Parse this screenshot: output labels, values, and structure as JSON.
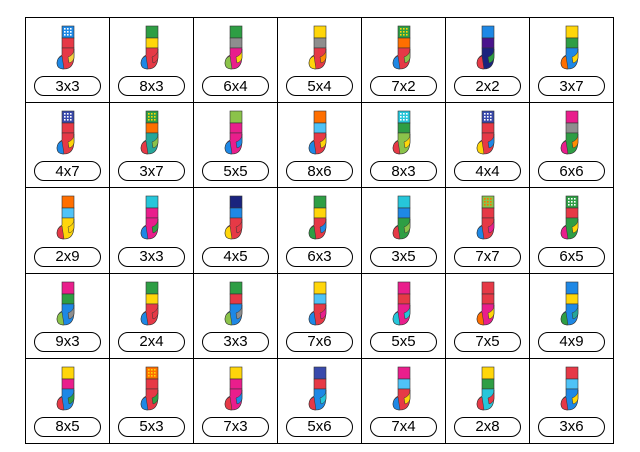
{
  "rows": [
    [
      {
        "label": "3x3",
        "colors": {
          "cuff": "#1e88e5",
          "dot": "#ffffff",
          "upper": "#e63946",
          "heel": "#f4d03f",
          "body": "#e63946",
          "toe": "#1e88e5"
        }
      },
      {
        "label": "8x3",
        "colors": {
          "cuff": "#2e9e44",
          "dot": null,
          "upper": "#ffd60a",
          "heel": "#e63946",
          "body": "#e63946",
          "toe": "#1e88e5"
        }
      },
      {
        "label": "6x4",
        "colors": {
          "cuff": "#2e9e44",
          "dot": null,
          "upper": "#8e8e8e",
          "heel": "#ffd60a",
          "body": "#e91e8c",
          "toe": "#8bc34a"
        }
      },
      {
        "label": "5x4",
        "colors": {
          "cuff": "#ffd60a",
          "dot": null,
          "upper": "#8e8e8e",
          "heel": "#ff8c00",
          "body": "#e63946",
          "toe": "#ffd60a"
        }
      },
      {
        "label": "7x2",
        "colors": {
          "cuff": "#2e9e44",
          "dot": "#ffd60a",
          "upper": "#ff6f00",
          "heel": "#8bc34a",
          "body": "#e63946",
          "toe": "#1e88e5"
        }
      },
      {
        "label": "2x2",
        "colors": {
          "cuff": "#1e88e5",
          "dot": null,
          "upper": "#4a148c",
          "heel": "#2e9e44",
          "body": "#1a237e",
          "toe": "#e63946"
        }
      },
      {
        "label": "3x7",
        "colors": {
          "cuff": "#ffd60a",
          "dot": null,
          "upper": "#2e9e44",
          "heel": "#ffd60a",
          "body": "#1e88e5",
          "toe": "#ff6f00"
        }
      }
    ],
    [
      {
        "label": "4x7",
        "colors": {
          "cuff": "#3949ab",
          "dot": "#ffffff",
          "upper": "#e63946",
          "heel": "#ffd60a",
          "body": "#e63946",
          "toe": "#1e88e5"
        }
      },
      {
        "label": "3x7",
        "colors": {
          "cuff": "#2e9e44",
          "dot": "#ffd60a",
          "upper": "#ff6f00",
          "heel": "#8bc34a",
          "body": "#26a69a",
          "toe": "#e63946"
        }
      },
      {
        "label": "5x5",
        "colors": {
          "cuff": "#8bc34a",
          "dot": null,
          "upper": "#e91e8c",
          "heel": "#1e88e5",
          "body": "#e91e8c",
          "toe": "#1e88e5"
        }
      },
      {
        "label": "8x6",
        "colors": {
          "cuff": "#ff6f00",
          "dot": null,
          "upper": "#4fc3f7",
          "heel": "#ffd60a",
          "body": "#e63946",
          "toe": "#1e88e5"
        }
      },
      {
        "label": "8x3",
        "colors": {
          "cuff": "#26c6da",
          "dot": "#ffffff",
          "upper": "#2e9e44",
          "heel": "#ffd60a",
          "body": "#8bc34a",
          "toe": "#e63946"
        }
      },
      {
        "label": "4x4",
        "colors": {
          "cuff": "#3949ab",
          "dot": "#ffffff",
          "upper": "#e63946",
          "heel": "#1e88e5",
          "body": "#e63946",
          "toe": "#ffd60a"
        }
      },
      {
        "label": "6x6",
        "colors": {
          "cuff": "#e91e8c",
          "dot": null,
          "upper": "#8e8e8e",
          "heel": "#ff8c00",
          "body": "#2e9e44",
          "toe": "#e91e8c"
        }
      }
    ],
    [
      {
        "label": "2x9",
        "colors": {
          "cuff": "#ff6f00",
          "dot": null,
          "upper": "#4fc3f7",
          "heel": "#ffd60a",
          "body": "#ffd60a",
          "toe": "#e63946"
        }
      },
      {
        "label": "3x3",
        "colors": {
          "cuff": "#26c6da",
          "dot": null,
          "upper": "#e91e8c",
          "heel": "#2e9e44",
          "body": "#e91e8c",
          "toe": "#1e88e5"
        }
      },
      {
        "label": "4x5",
        "colors": {
          "cuff": "#1a237e",
          "dot": null,
          "upper": "#1e88e5",
          "heel": "#e63946",
          "body": "#e63946",
          "toe": "#ffd60a"
        }
      },
      {
        "label": "6x3",
        "colors": {
          "cuff": "#2e9e44",
          "dot": null,
          "upper": "#ffd60a",
          "heel": "#1e88e5",
          "body": "#e63946",
          "toe": "#2e9e44"
        }
      },
      {
        "label": "3x5",
        "colors": {
          "cuff": "#26c6da",
          "dot": null,
          "upper": "#1e88e5",
          "heel": "#8bc34a",
          "body": "#2e9e44",
          "toe": "#e63946"
        }
      },
      {
        "label": "7x7",
        "colors": {
          "cuff": "#8bc34a",
          "dot": "#ff6f00",
          "upper": "#e63946",
          "heel": "#e91e8c",
          "body": "#e63946",
          "toe": "#1e88e5"
        }
      },
      {
        "label": "6x5",
        "colors": {
          "cuff": "#2e9e44",
          "dot": "#ffffff",
          "upper": "#e63946",
          "heel": "#ffd60a",
          "body": "#2e9e44",
          "toe": "#e91e8c"
        }
      }
    ],
    [
      {
        "label": "9x3",
        "colors": {
          "cuff": "#e91e8c",
          "dot": null,
          "upper": "#2e9e44",
          "heel": "#8e8e8e",
          "body": "#1e88e5",
          "toe": "#8bc34a"
        }
      },
      {
        "label": "2x4",
        "colors": {
          "cuff": "#2e9e44",
          "dot": null,
          "upper": "#ffd60a",
          "heel": "#e63946",
          "body": "#e63946",
          "toe": "#1e88e5"
        }
      },
      {
        "label": "3x3",
        "colors": {
          "cuff": "#2e9e44",
          "dot": null,
          "upper": "#e63946",
          "heel": "#8e8e8e",
          "body": "#1e88e5",
          "toe": "#8bc34a"
        }
      },
      {
        "label": "7x6",
        "colors": {
          "cuff": "#ffd60a",
          "dot": null,
          "upper": "#4fc3f7",
          "heel": "#e91e8c",
          "body": "#e63946",
          "toe": "#1e88e5"
        }
      },
      {
        "label": "5x5",
        "colors": {
          "cuff": "#e91e8c",
          "dot": null,
          "upper": "#e63946",
          "heel": "#26c6da",
          "body": "#e91e8c",
          "toe": "#26c6da"
        }
      },
      {
        "label": "7x5",
        "colors": {
          "cuff": "#e63946",
          "dot": null,
          "upper": "#e63946",
          "heel": "#ffd60a",
          "body": "#e91e8c",
          "toe": "#ff6f00"
        }
      },
      {
        "label": "4x9",
        "colors": {
          "cuff": "#1e88e5",
          "dot": null,
          "upper": "#ffd60a",
          "heel": "#26a69a",
          "body": "#1e88e5",
          "toe": "#2e9e44"
        }
      }
    ],
    [
      {
        "label": "8x5",
        "colors": {
          "cuff": "#ffd60a",
          "dot": null,
          "upper": "#e91e8c",
          "heel": "#2e9e44",
          "body": "#1e88e5",
          "toe": "#e63946"
        }
      },
      {
        "label": "5x3",
        "colors": {
          "cuff": "#ff6f00",
          "dot": "#ffd60a",
          "upper": "#e63946",
          "heel": "#2e9e44",
          "body": "#e63946",
          "toe": "#1e88e5"
        }
      },
      {
        "label": "7x3",
        "colors": {
          "cuff": "#ffd60a",
          "dot": null,
          "upper": "#e91e8c",
          "heel": "#1e88e5",
          "body": "#e91e8c",
          "toe": "#e63946"
        }
      },
      {
        "label": "5x6",
        "colors": {
          "cuff": "#3949ab",
          "dot": null,
          "upper": "#e63946",
          "heel": "#26c6da",
          "body": "#1e88e5",
          "toe": "#e63946"
        }
      },
      {
        "label": "7x4",
        "colors": {
          "cuff": "#e91e8c",
          "dot": null,
          "upper": "#4fc3f7",
          "heel": "#ffd60a",
          "body": "#e63946",
          "toe": "#1e88e5"
        }
      },
      {
        "label": "2x8",
        "colors": {
          "cuff": "#ffd60a",
          "dot": null,
          "upper": "#2e9e44",
          "heel": "#e63946",
          "body": "#26c6da",
          "toe": "#e63946"
        }
      },
      {
        "label": "3x6",
        "colors": {
          "cuff": "#e63946",
          "dot": null,
          "upper": "#4fc3f7",
          "heel": "#ffd60a",
          "body": "#1e88e5",
          "toe": "#e63946"
        }
      }
    ]
  ]
}
